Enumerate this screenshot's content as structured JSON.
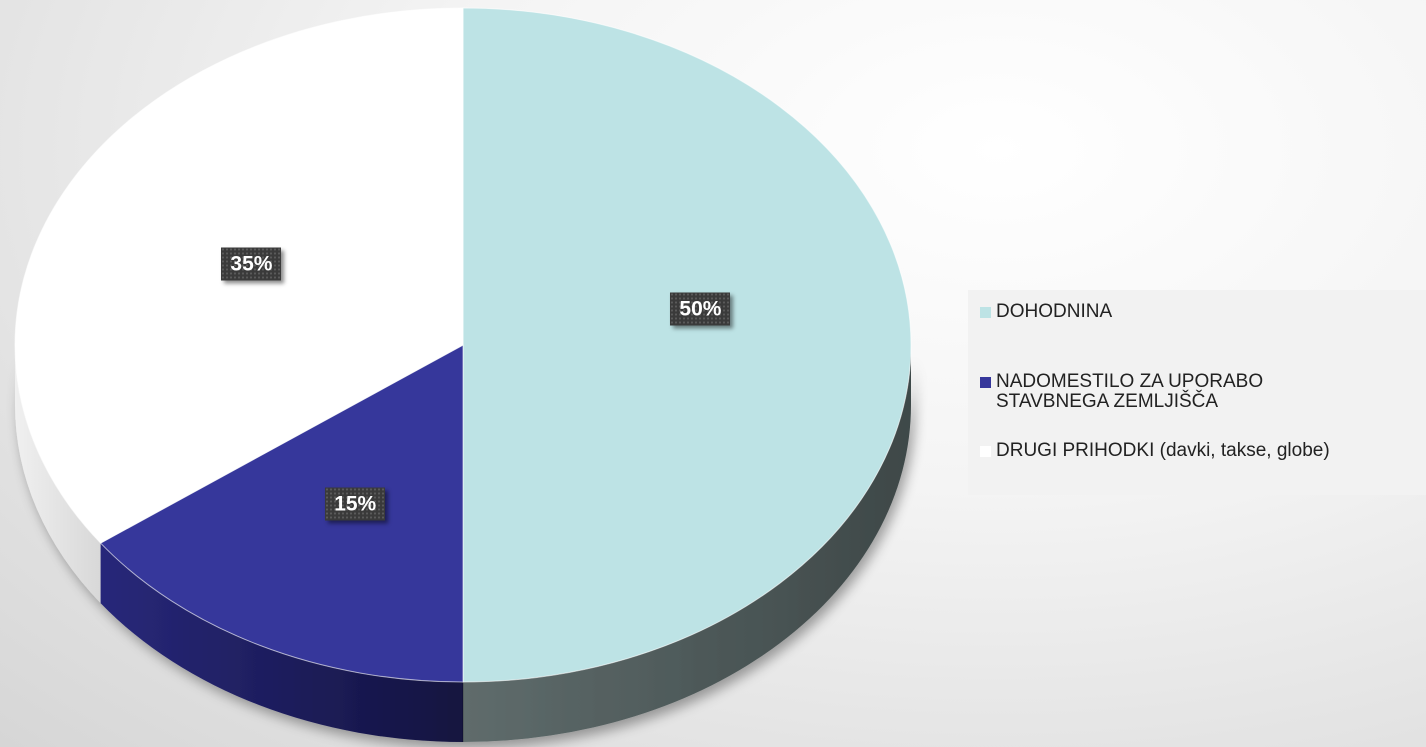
{
  "chart_data": {
    "type": "pie",
    "title": "",
    "categories": [
      "DOHODNINA",
      "NADOMESTILO ZA UPORABO\nSTAVBNEGA ZEMLJIŠČA",
      "DRUGI PRIHODKI (davki, takse, globe)"
    ],
    "values": [
      50,
      15,
      35
    ],
    "data_labels": [
      "50%",
      "15%",
      "35%"
    ],
    "colors": [
      "#bde3e5",
      "#36379b",
      "#ffffff"
    ],
    "side_colors": [
      "#4f5c5c",
      "#1c1c5e",
      "#e2e2e2"
    ],
    "legend_position": "right",
    "style": "3d"
  }
}
